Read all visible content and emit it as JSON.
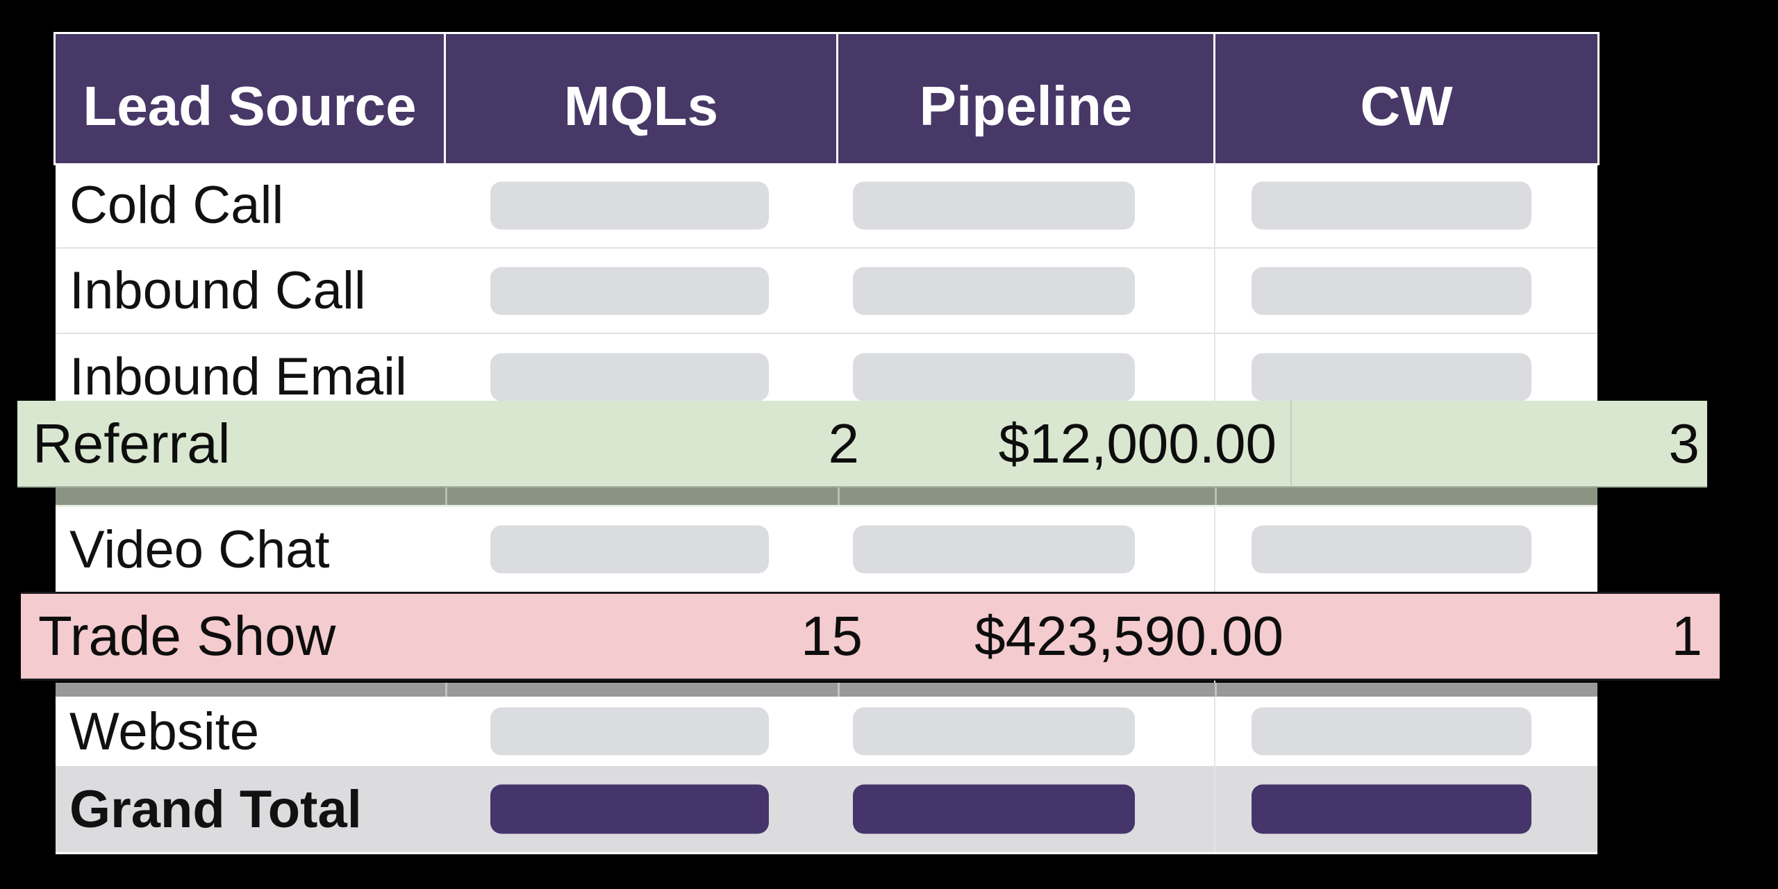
{
  "colors": {
    "background": "#000000",
    "header_bg": "#473867",
    "header_text": "#ffffff",
    "row_bg": "#ffffff",
    "row_text": "#111111",
    "placeholder_pill": "#dbdcdf",
    "total_row_bg": "#dcdcdf",
    "total_pill": "#46356b",
    "highlight_green_bg": "#d9e7d0",
    "highlight_green_shadow": "#8b9482",
    "highlight_red_bg": "#f4cbce",
    "highlight_red_shadow": "#999999"
  },
  "table": {
    "columns": [
      "Lead Source",
      "MQLs",
      "Pipeline",
      "CW"
    ],
    "rows": [
      {
        "label": "Cold Call",
        "mqls": "",
        "pipeline": "",
        "cw": "",
        "state": "values-redacted"
      },
      {
        "label": "Inbound Call",
        "mqls": "",
        "pipeline": "",
        "cw": "",
        "state": "values-redacted"
      },
      {
        "label": "Inbound Email",
        "mqls": "",
        "pipeline": "",
        "cw": "",
        "state": "values-redacted"
      },
      {
        "label": "Referral",
        "mqls": "2",
        "pipeline": "$12,000.00",
        "cw": "3",
        "state": "highlighted-green"
      },
      {
        "label": "Video Chat",
        "mqls": "",
        "pipeline": "",
        "cw": "",
        "state": "values-redacted"
      },
      {
        "label": "Trade Show",
        "mqls": "15",
        "pipeline": "$423,590.00",
        "cw": "1",
        "state": "highlighted-red"
      },
      {
        "label": "Website",
        "mqls": "",
        "pipeline": "",
        "cw": "",
        "state": "values-redacted"
      },
      {
        "label": "Grand Total",
        "mqls": "",
        "pipeline": "",
        "cw": "",
        "state": "totals-redacted"
      }
    ]
  }
}
